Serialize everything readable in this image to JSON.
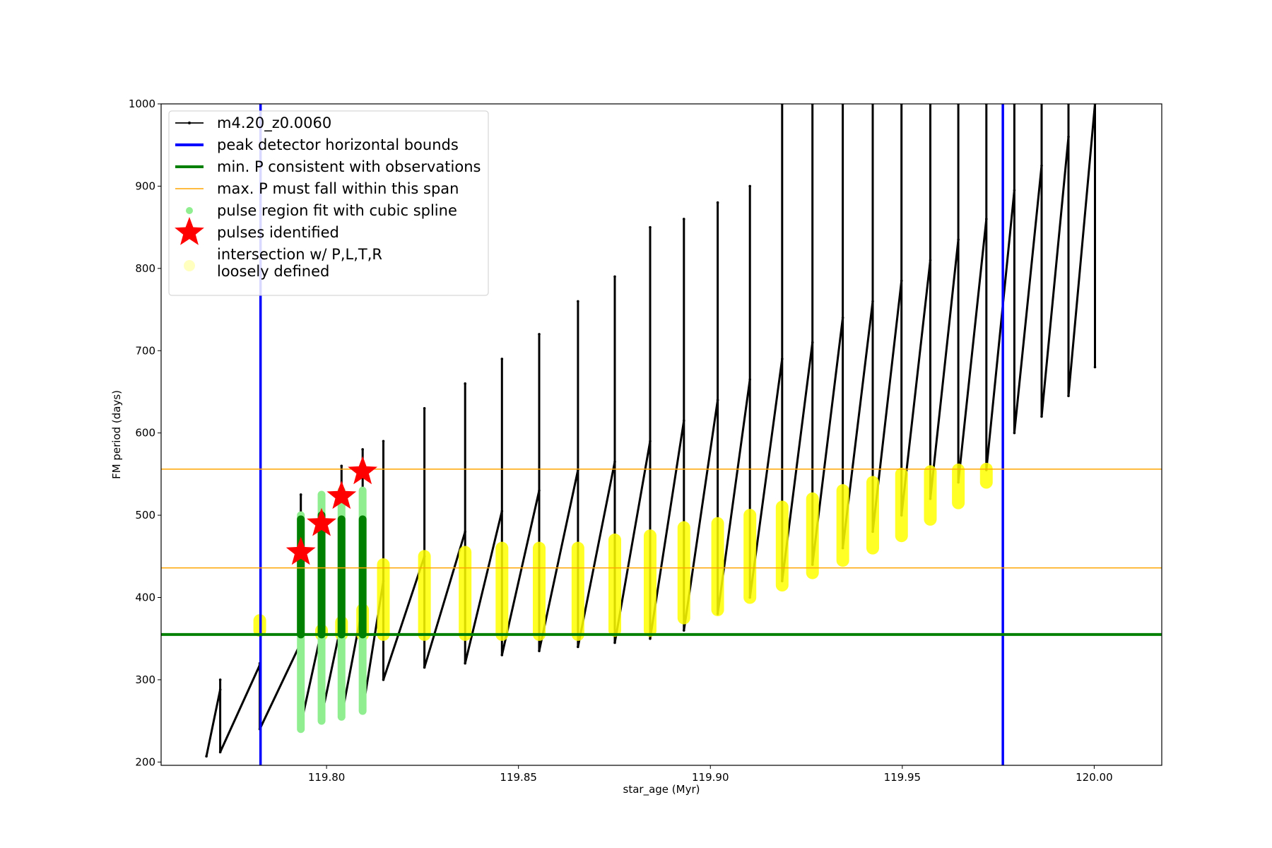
{
  "chart_data": {
    "type": "line",
    "x_label": "star_age (Myr)",
    "y_label": "FM period (days)",
    "xlim": [
      119.7569,
      120.0176
    ],
    "ylim": [
      196,
      1000
    ],
    "xticks": [
      {
        "value": 119.8,
        "label": "119.80"
      },
      {
        "value": 119.85,
        "label": "119.85"
      },
      {
        "value": 119.9,
        "label": "119.90"
      },
      {
        "value": 119.95,
        "label": "119.95"
      },
      {
        "value": 120,
        "label": "120.00"
      }
    ],
    "yticks": [
      200,
      300,
      400,
      500,
      600,
      700,
      800,
      900,
      1000
    ],
    "legend": "upper left",
    "series": [
      {
        "name": "m4.20_z0.0060",
        "type": "line",
        "color": "#000000",
        "x": [
          119.7687,
          119.7723,
          119.7723,
          119.7723,
          119.7826,
          119.7826,
          119.7826,
          119.7933,
          119.7933,
          119.7933,
          119.7987,
          119.7987,
          119.7987,
          119.8039,
          119.8039,
          119.8039,
          119.8094,
          119.8094,
          119.8094,
          119.8148,
          119.8148,
          119.8148,
          119.8255,
          119.8255,
          119.8255,
          119.8361,
          119.8361,
          119.8361,
          119.8457,
          119.8457,
          119.8457,
          119.8554,
          119.8554,
          119.8554,
          119.8655,
          119.8655,
          119.8655,
          119.8751,
          119.8751,
          119.8751,
          119.8843,
          119.8843,
          119.8843,
          119.8931,
          119.8931,
          119.8931,
          119.9019,
          119.9019,
          119.9019,
          119.9103,
          119.9103,
          119.9103,
          119.9187,
          119.9187,
          119.9187,
          119.9266,
          119.9266,
          119.9266,
          119.9345,
          119.9345,
          119.9345,
          119.9423,
          119.9423,
          119.9423,
          119.9498,
          119.9498,
          119.9498,
          119.9573,
          119.9573,
          119.9573,
          119.9646,
          119.9646,
          119.9646,
          119.9719,
          119.9719,
          119.9719,
          119.9792,
          119.9792,
          119.9792,
          119.9863,
          119.9863,
          119.9863,
          119.9933,
          119.9933,
          119.9933,
          120.0002,
          120.0002,
          120.0002
        ],
        "values": [
          207,
          288,
          300,
          212,
          318,
          320,
          240,
          345,
          525,
          245,
          360,
          525,
          255,
          370,
          560,
          255,
          390,
          580,
          262,
          420,
          590,
          300,
          450,
          630,
          315,
          480,
          660,
          320,
          505,
          690,
          330,
          530,
          720,
          335,
          555,
          760,
          340,
          565,
          790,
          345,
          590,
          850,
          350,
          615,
          860,
          360,
          640,
          880,
          380,
          665,
          900,
          400,
          690,
          1000,
          420,
          710,
          1000,
          440,
          740,
          1000,
          460,
          760,
          1000,
          480,
          785,
          1000,
          500,
          810,
          1000,
          520,
          835,
          1000,
          540,
          860,
          1000,
          555,
          895,
          1000,
          600,
          925,
          1000,
          620,
          960,
          1000,
          645,
          1000,
          1000,
          680
        ]
      },
      {
        "name": "peak detector horizontal bounds",
        "type": "vline",
        "color": "#0000ff",
        "x": [
          119.7828,
          119.9762
        ]
      },
      {
        "name": "min. P consistent with observations",
        "type": "hline",
        "color": "#008000",
        "values": [
          355
        ]
      },
      {
        "name": "max. P must fall within this span",
        "type": "hline",
        "color": "#ffa500",
        "values": [
          436,
          556
        ]
      },
      {
        "name": "pulse region fit with cubic spline",
        "type": "range",
        "color": "#90ee90",
        "x": [
          119.7933,
          119.7987,
          119.8039,
          119.8094
        ],
        "low": [
          240,
          250,
          255,
          262
        ],
        "high": [
          500,
          525,
          530,
          530
        ]
      },
      {
        "type": "range",
        "color": "#008000",
        "x": [
          119.7933,
          119.7987,
          119.8039,
          119.8094
        ],
        "low": [
          355,
          355,
          355,
          355
        ],
        "high": [
          495,
          500,
          495,
          495
        ]
      },
      {
        "name": "pulses identified",
        "type": "scatter",
        "color": "#ff0000",
        "x": [
          119.7933,
          119.7987,
          119.8039,
          119.8094
        ],
        "values": [
          455,
          490,
          523,
          553
        ]
      },
      {
        "name": "intersection w/ P,L,T,R\nloosely defined",
        "type": "range",
        "color": "#ffff00",
        "x": [
          119.7826,
          119.7987,
          119.8039,
          119.8094,
          119.8148,
          119.8255,
          119.8361,
          119.8457,
          119.8554,
          119.8655,
          119.8751,
          119.8843,
          119.8931,
          119.9019,
          119.9103,
          119.9187,
          119.9266,
          119.9345,
          119.9423,
          119.9498,
          119.9573,
          119.9646,
          119.9719
        ],
        "low": [
          360,
          355,
          355,
          355,
          355,
          355,
          355,
          355,
          355,
          355,
          360,
          360,
          375,
          385,
          400,
          415,
          430,
          445,
          460,
          475,
          495,
          515,
          540
        ],
        "high": [
          372,
          360,
          370,
          385,
          440,
          450,
          455,
          460,
          460,
          460,
          470,
          475,
          485,
          490,
          500,
          510,
          520,
          530,
          540,
          550,
          553,
          555,
          556
        ]
      }
    ]
  }
}
